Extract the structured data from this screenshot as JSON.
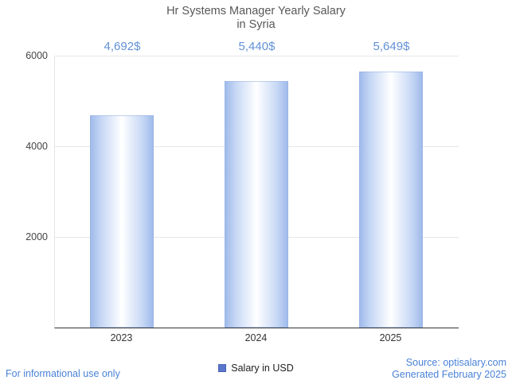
{
  "title": {
    "line1": "Hr Systems Manager Yearly Salary",
    "line2": "in Syria"
  },
  "chart_data": {
    "type": "bar",
    "title": "Hr Systems Manager Yearly Salary in Syria",
    "categories": [
      "2023",
      "2024",
      "2025"
    ],
    "values": [
      4692,
      5440,
      5649
    ],
    "value_labels": [
      "4,692$",
      "5,440$",
      "5,649$"
    ],
    "series_name": "Salary in USD",
    "xlabel": "",
    "ylabel": "",
    "ylim": [
      0,
      6000
    ],
    "yticks": [
      "6000",
      "4000",
      "2000"
    ],
    "ytick_values": [
      6000,
      4000,
      2000
    ],
    "grid": true,
    "legend_position": "bottom",
    "colors": {
      "bar_edge": "#9db9ea",
      "bar_center": "#ffffff",
      "annotation_text": "#6191d6",
      "legend_swatch": "#5b76cc",
      "gridline": "#e6e6e6",
      "axis_line": "#333333",
      "title_text": "#585858"
    }
  },
  "legend": {
    "label": "Salary in USD"
  },
  "footer": {
    "left": "For informational use only",
    "source": "Source: optisalary.com",
    "generated": "Generated February 2025"
  }
}
